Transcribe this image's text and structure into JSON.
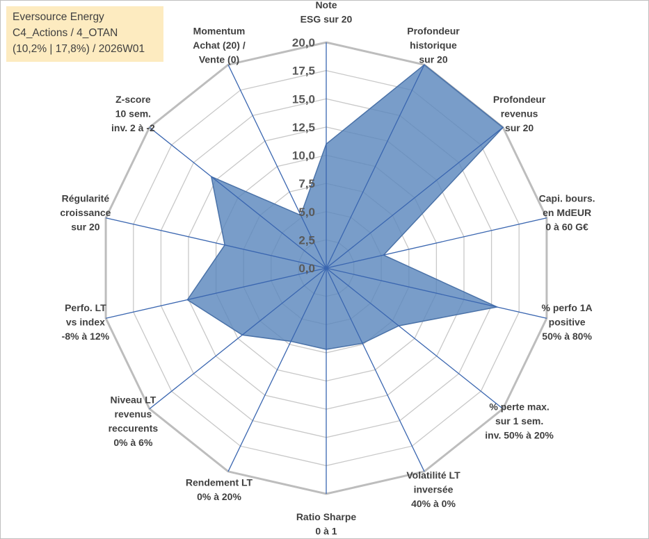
{
  "title": {
    "line1": "Eversource Energy",
    "line2": "C4_Actions / 4_OTAN",
    "line3": "(10,2% | 17,8%) / 2026W01"
  },
  "chart_data": {
    "type": "radar",
    "rlim": [
      0,
      20
    ],
    "tick_labels": [
      "0,0",
      "2,5",
      "5,0",
      "7,5",
      "10,0",
      "12,5",
      "15,0",
      "17,5",
      "20,0"
    ],
    "categories": [
      [
        "Note",
        "ESG sur 20"
      ],
      [
        "Profondeur",
        "historique",
        "sur 20"
      ],
      [
        "Profondeur",
        "revenus",
        "sur 20"
      ],
      [
        "Capi. bours.",
        "en MdEUR",
        "0 à 60 G€"
      ],
      [
        "% perfo 1A",
        "positive",
        "50% à 80%"
      ],
      [
        "% perte max.",
        "sur 1 sem.",
        "inv. 50% à 20%"
      ],
      [
        "Volatilité LT",
        "inversée",
        "40% à 0%"
      ],
      [
        "Ratio Sharpe",
        "0 à 1"
      ],
      [
        "Rendement LT",
        "0% à 20%"
      ],
      [
        "Niveau LT",
        "revenus",
        "reccurents",
        "0% à 6%"
      ],
      [
        "Perfo. LT",
        "vs index",
        "-8% à 12%"
      ],
      [
        "Régularité",
        "croissance",
        "sur 20"
      ],
      [
        "Z-score",
        "10 sem.",
        "inv. 2 à -2"
      ],
      [
        "Momentum",
        "Achat (20) /",
        "Vente (0)"
      ]
    ],
    "series": [
      {
        "name": "Eversource Energy",
        "color": "#5b87bd",
        "values": [
          11,
          20,
          20,
          5.2,
          15.5,
          8.2,
          7.4,
          7.2,
          7.2,
          9.5,
          12.6,
          9.2,
          13,
          5.2
        ]
      }
    ],
    "grid": true,
    "legend": "none"
  }
}
